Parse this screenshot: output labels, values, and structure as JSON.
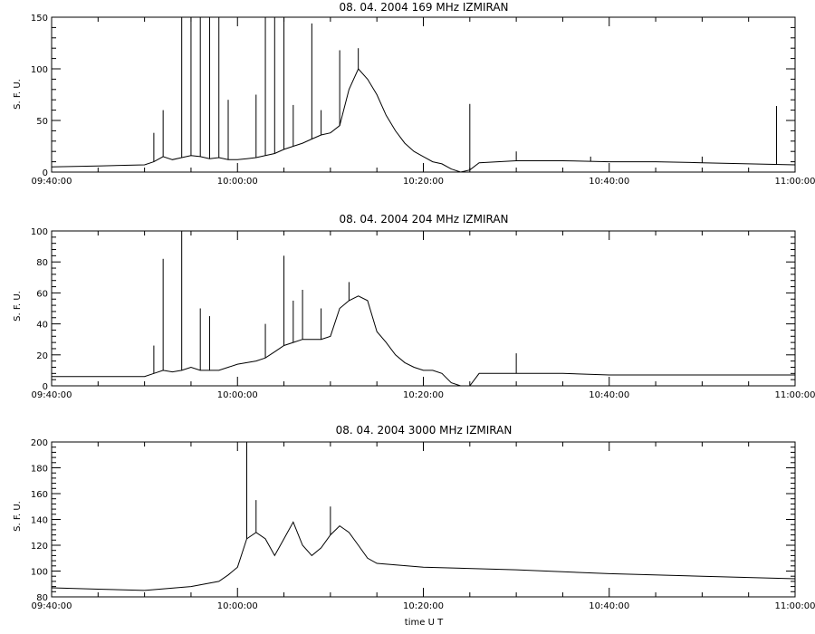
{
  "chart_data": [
    {
      "type": "line",
      "title": "08.  04.  2004    169 MHz    IZMIRAN",
      "ylabel": "S. F. U.",
      "xlabel": "",
      "xlim": [
        "09:40:00",
        "11:00:00"
      ],
      "xticks": [
        "09:40:00",
        "10:00:00",
        "10:20:00",
        "10:40:00",
        "11:00:00"
      ],
      "ylim": [
        0,
        150
      ],
      "yticks": [
        "0",
        "50",
        "100",
        "150"
      ],
      "grid": false,
      "series": [
        {
          "x": [
            "09:40",
            "09:45",
            "09:50",
            "09:51",
            "09:52",
            "09:53",
            "09:54",
            "09:55",
            "09:56",
            "09:57",
            "09:58",
            "09:59",
            "10:00",
            "10:01",
            "10:02",
            "10:03",
            "10:04",
            "10:05",
            "10:06",
            "10:07",
            "10:08",
            "10:09",
            "10:10",
            "10:11",
            "10:12",
            "10:13",
            "10:14",
            "10:15",
            "10:16",
            "10:17",
            "10:18",
            "10:19",
            "10:20",
            "10:21",
            "10:22",
            "10:23",
            "10:24",
            "10:25",
            "10:26",
            "10:28",
            "10:30",
            "10:35",
            "10:40",
            "10:45",
            "10:50",
            "10:55",
            "11:00"
          ],
          "values": [
            5,
            6,
            7,
            10,
            15,
            12,
            14,
            16,
            15,
            13,
            14,
            12,
            12,
            13,
            14,
            16,
            18,
            22,
            25,
            28,
            32,
            36,
            38,
            45,
            80,
            100,
            90,
            75,
            55,
            40,
            28,
            20,
            15,
            10,
            8,
            3,
            0,
            2,
            9,
            10,
            11,
            11,
            10,
            10,
            9,
            8,
            7
          ],
          "spikes": [
            {
              "x": "09:51",
              "y": 38
            },
            {
              "x": "09:52",
              "y": 60
            },
            {
              "x": "09:54",
              "y": 150
            },
            {
              "x": "09:55",
              "y": 150
            },
            {
              "x": "09:56",
              "y": 150
            },
            {
              "x": "09:57",
              "y": 150
            },
            {
              "x": "09:58",
              "y": 150
            },
            {
              "x": "09:59",
              "y": 70
            },
            {
              "x": "10:02",
              "y": 75
            },
            {
              "x": "10:03",
              "y": 150
            },
            {
              "x": "10:04",
              "y": 150
            },
            {
              "x": "10:05",
              "y": 150
            },
            {
              "x": "10:06",
              "y": 65
            },
            {
              "x": "10:08",
              "y": 144
            },
            {
              "x": "10:09",
              "y": 60
            },
            {
              "x": "10:11",
              "y": 118
            },
            {
              "x": "10:13",
              "y": 120
            },
            {
              "x": "10:25",
              "y": 66
            },
            {
              "x": "10:30",
              "y": 20
            },
            {
              "x": "10:38",
              "y": 15
            },
            {
              "x": "10:50",
              "y": 15
            },
            {
              "x": "10:58",
              "y": 64
            }
          ]
        }
      ]
    },
    {
      "type": "line",
      "title": "08.  04.  2004    204 MHz    IZMIRAN",
      "ylabel": "S. F. U.",
      "xlabel": "",
      "xlim": [
        "09:40:00",
        "11:00:00"
      ],
      "xticks": [
        "09:40:00",
        "10:00:00",
        "10:20:00",
        "10:40:00",
        "11:00:00"
      ],
      "ylim": [
        0,
        100
      ],
      "yticks": [
        "0",
        "20",
        "40",
        "60",
        "80",
        "100"
      ],
      "grid": false,
      "series": [
        {
          "x": [
            "09:40",
            "09:45",
            "09:50",
            "09:51",
            "09:52",
            "09:53",
            "09:54",
            "09:55",
            "09:56",
            "09:57",
            "09:58",
            "09:59",
            "10:00",
            "10:01",
            "10:02",
            "10:03",
            "10:04",
            "10:05",
            "10:06",
            "10:07",
            "10:08",
            "10:09",
            "10:10",
            "10:11",
            "10:12",
            "10:13",
            "10:14",
            "10:15",
            "10:16",
            "10:17",
            "10:18",
            "10:19",
            "10:20",
            "10:21",
            "10:22",
            "10:23",
            "10:24",
            "10:25",
            "10:26",
            "10:28",
            "10:30",
            "10:35",
            "10:40",
            "10:45",
            "10:50",
            "10:55",
            "11:00"
          ],
          "values": [
            6,
            6,
            6,
            8,
            10,
            9,
            10,
            12,
            10,
            10,
            10,
            12,
            14,
            15,
            16,
            18,
            22,
            26,
            28,
            30,
            30,
            30,
            32,
            50,
            55,
            58,
            55,
            35,
            28,
            20,
            15,
            12,
            10,
            10,
            8,
            2,
            0,
            0,
            8,
            8,
            8,
            8,
            7,
            7,
            7,
            7,
            7
          ],
          "spikes": [
            {
              "x": "09:51",
              "y": 26
            },
            {
              "x": "09:52",
              "y": 82
            },
            {
              "x": "09:54",
              "y": 100
            },
            {
              "x": "09:56",
              "y": 50
            },
            {
              "x": "09:57",
              "y": 45
            },
            {
              "x": "10:03",
              "y": 40
            },
            {
              "x": "10:05",
              "y": 84
            },
            {
              "x": "10:06",
              "y": 55
            },
            {
              "x": "10:07",
              "y": 62
            },
            {
              "x": "10:09",
              "y": 50
            },
            {
              "x": "10:12",
              "y": 67
            },
            {
              "x": "10:30",
              "y": 21
            }
          ]
        }
      ]
    },
    {
      "type": "line",
      "title": "08.  04.  2004    3000 MHz    IZMIRAN",
      "ylabel": "S. F. U.",
      "xlabel": "time  U T",
      "xlim": [
        "09:40:00",
        "11:00:00"
      ],
      "xticks": [
        "09:40:00",
        "10:00:00",
        "10:20:00",
        "10:40:00",
        "11:00:00"
      ],
      "ylim": [
        80,
        200
      ],
      "yticks": [
        "80",
        "100",
        "120",
        "140",
        "160",
        "180",
        "200"
      ],
      "grid": false,
      "series": [
        {
          "x": [
            "09:40",
            "09:45",
            "09:50",
            "09:55",
            "09:58",
            "09:59",
            "10:00",
            "10:01",
            "10:02",
            "10:03",
            "10:04",
            "10:05",
            "10:06",
            "10:07",
            "10:08",
            "10:09",
            "10:10",
            "10:11",
            "10:12",
            "10:13",
            "10:14",
            "10:15",
            "10:20",
            "10:30",
            "10:40",
            "10:50",
            "11:00"
          ],
          "values": [
            87,
            86,
            85,
            88,
            92,
            97,
            103,
            125,
            130,
            125,
            112,
            125,
            138,
            120,
            112,
            118,
            128,
            135,
            130,
            120,
            110,
            106,
            103,
            101,
            98,
            96,
            94
          ],
          "spikes": [
            {
              "x": "10:01",
              "y": 200
            },
            {
              "x": "10:02",
              "y": 155
            },
            {
              "x": "10:10",
              "y": 150
            }
          ]
        }
      ]
    }
  ]
}
